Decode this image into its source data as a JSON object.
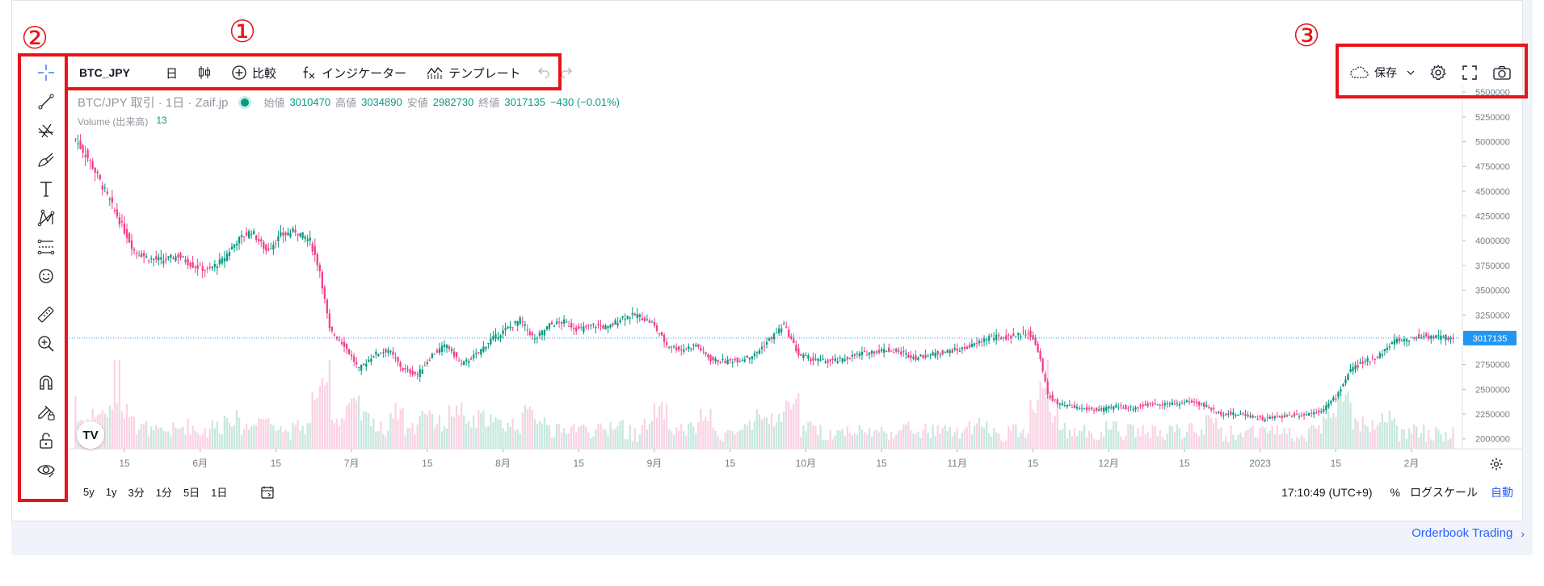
{
  "annotations": {
    "one": "①",
    "two": "②",
    "three": "③"
  },
  "toolbar": {
    "symbol": "BTC_JPY",
    "interval": "日",
    "compare_label": "比較",
    "indicators_label": "インジケーター",
    "template_label": "テンプレート",
    "icons": [
      "candles-icon",
      "plus-circle-icon",
      "fx-icon",
      "template-icon",
      "undo-icon",
      "redo-icon"
    ]
  },
  "right_toolbar": {
    "save_label": "保存",
    "icons": [
      "cloud-icon",
      "chevron-down-icon",
      "gear-icon",
      "fullscreen-icon",
      "camera-icon"
    ]
  },
  "left_toolbar": {
    "tools": [
      "crosshair",
      "trend-line",
      "fib",
      "brush",
      "text",
      "pattern",
      "measure-bars",
      "emoji",
      "ruler",
      "zoom-in",
      "magnet",
      "lock-drawing",
      "unlock",
      "eye"
    ]
  },
  "legend": {
    "title": "BTC/JPY 取引 · 1日 · Zaif.jp",
    "open_label": "始値",
    "open": "3010470",
    "high_label": "高値",
    "high": "3034890",
    "low_label": "安値",
    "low": "2982730",
    "close_label": "終値",
    "close": "3017135",
    "change": "−430 (−0.01%)"
  },
  "volume_legend": {
    "label": "Volume (出来高)",
    "value": "13"
  },
  "bottom": {
    "ranges": [
      "5y",
      "1y",
      "3分",
      "1分",
      "5日",
      "1日"
    ],
    "time": "17:10:49 (UTC+9)",
    "percent": "%",
    "log": "ログスケール",
    "auto": "自動"
  },
  "footer": {
    "link": "Orderbook Trading"
  },
  "colors": {
    "up": "#089981",
    "down": "#f23f8a",
    "vol_up": "#c8e8df",
    "vol_down": "#fbd3e4",
    "accent": "#2962ff"
  },
  "chart_data": {
    "type": "candlestick",
    "price_label": "3017135",
    "y_ticks": [
      "5500000",
      "5250000",
      "5000000",
      "4750000",
      "4500000",
      "4250000",
      "4000000",
      "3750000",
      "3500000",
      "3250000",
      "3000000",
      "2750000",
      "2500000",
      "2250000",
      "2000000"
    ],
    "x_ticks": [
      "15",
      "6月",
      "15",
      "7月",
      "15",
      "8月",
      "15",
      "9月",
      "15",
      "10月",
      "15",
      "11月",
      "15",
      "12月",
      "15",
      "2023",
      "15",
      "2月"
    ],
    "ylim": [
      1900000,
      5550000
    ],
    "close_price": 3017135,
    "path": [
      [
        0,
        5020000
      ],
      [
        6,
        4800000
      ],
      [
        12,
        4500000
      ],
      [
        18,
        4200000
      ],
      [
        24,
        3900000
      ],
      [
        30,
        3820000
      ],
      [
        36,
        3800000
      ],
      [
        42,
        3850000
      ],
      [
        48,
        3750000
      ],
      [
        54,
        3700000
      ],
      [
        60,
        3800000
      ],
      [
        66,
        4000000
      ],
      [
        72,
        4100000
      ],
      [
        78,
        3900000
      ],
      [
        84,
        4050000
      ],
      [
        90,
        4100000
      ],
      [
        96,
        4000000
      ],
      [
        100,
        3700000
      ],
      [
        104,
        3100000
      ],
      [
        110,
        2950000
      ],
      [
        116,
        2700000
      ],
      [
        122,
        2850000
      ],
      [
        128,
        2900000
      ],
      [
        134,
        2700000
      ],
      [
        140,
        2650000
      ],
      [
        146,
        2850000
      ],
      [
        152,
        2950000
      ],
      [
        158,
        2750000
      ],
      [
        164,
        2850000
      ],
      [
        170,
        3000000
      ],
      [
        176,
        3100000
      ],
      [
        182,
        3200000
      ],
      [
        188,
        3000000
      ],
      [
        194,
        3150000
      ],
      [
        200,
        3180000
      ],
      [
        206,
        3100000
      ],
      [
        212,
        3150000
      ],
      [
        218,
        3120000
      ],
      [
        224,
        3230000
      ],
      [
        230,
        3250000
      ],
      [
        236,
        3170000
      ],
      [
        242,
        2950000
      ],
      [
        248,
        2900000
      ],
      [
        254,
        2950000
      ],
      [
        260,
        2800000
      ],
      [
        266,
        2780000
      ],
      [
        272,
        2800000
      ],
      [
        278,
        2850000
      ],
      [
        284,
        3000000
      ],
      [
        290,
        3150000
      ],
      [
        296,
        2850000
      ],
      [
        302,
        2800000
      ],
      [
        308,
        2780000
      ],
      [
        314,
        2800000
      ],
      [
        320,
        2850000
      ],
      [
        326,
        2880000
      ],
      [
        332,
        2900000
      ],
      [
        338,
        2870000
      ],
      [
        344,
        2820000
      ],
      [
        350,
        2850000
      ],
      [
        356,
        2880000
      ],
      [
        362,
        2900000
      ],
      [
        368,
        2950000
      ],
      [
        374,
        3030000
      ],
      [
        380,
        3020000
      ],
      [
        386,
        3050000
      ],
      [
        390,
        3080000
      ],
      [
        394,
        2900000
      ],
      [
        398,
        2450000
      ],
      [
        402,
        2350000
      ],
      [
        408,
        2320000
      ],
      [
        414,
        2300000
      ],
      [
        420,
        2290000
      ],
      [
        426,
        2330000
      ],
      [
        432,
        2310000
      ],
      [
        438,
        2340000
      ],
      [
        444,
        2360000
      ],
      [
        450,
        2350000
      ],
      [
        456,
        2380000
      ],
      [
        462,
        2340000
      ],
      [
        468,
        2260000
      ],
      [
        474,
        2250000
      ],
      [
        480,
        2240000
      ],
      [
        486,
        2200000
      ],
      [
        492,
        2220000
      ],
      [
        498,
        2240000
      ],
      [
        504,
        2250000
      ],
      [
        510,
        2290000
      ],
      [
        516,
        2420000
      ],
      [
        522,
        2700000
      ],
      [
        528,
        2780000
      ],
      [
        534,
        2850000
      ],
      [
        540,
        2990000
      ],
      [
        546,
        3010000
      ],
      [
        552,
        3040000
      ],
      [
        558,
        3030000
      ],
      [
        564,
        3017135
      ]
    ]
  }
}
